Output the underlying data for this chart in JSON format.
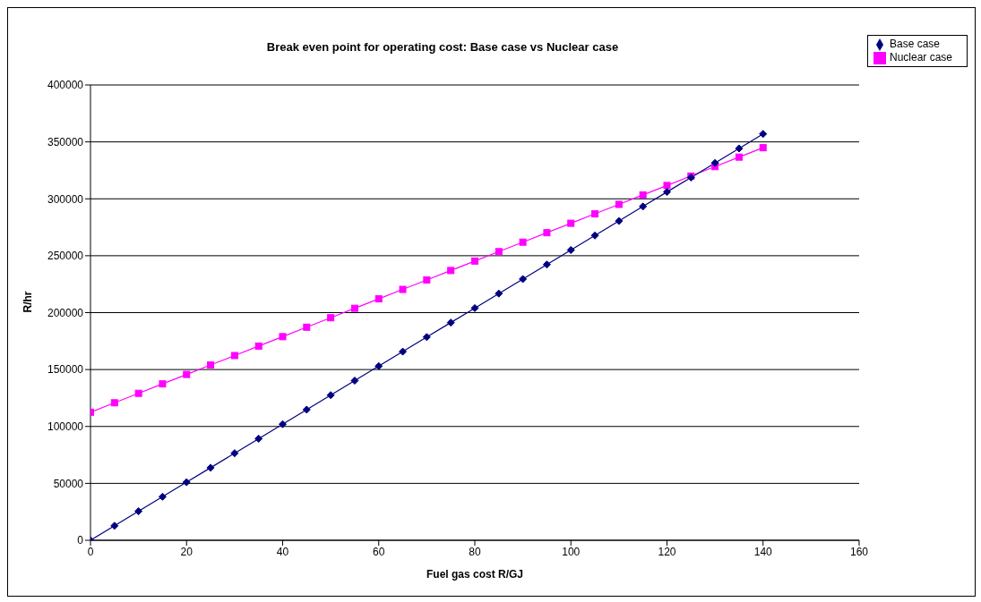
{
  "chart_data": {
    "type": "line",
    "title": "Break even point for operating cost: Base case vs Nuclear case",
    "xlabel": "Fuel gas cost R/GJ",
    "ylabel": "R/hr",
    "x": [
      0,
      5,
      10,
      15,
      20,
      25,
      30,
      35,
      40,
      45,
      50,
      55,
      60,
      65,
      70,
      75,
      80,
      85,
      90,
      95,
      100,
      105,
      110,
      115,
      120,
      125,
      130,
      135,
      140
    ],
    "series": [
      {
        "name": "Base case",
        "color": "#000080",
        "marker": "diamond",
        "values": [
          0,
          12750,
          25500,
          38250,
          51000,
          63750,
          76500,
          89250,
          102000,
          114750,
          127500,
          140250,
          153000,
          165750,
          178500,
          191250,
          204000,
          216750,
          229500,
          242250,
          255000,
          267750,
          280500,
          293250,
          306000,
          318750,
          331500,
          344250,
          357000
        ]
      },
      {
        "name": "Nuclear case",
        "color": "#ff00ff",
        "marker": "square",
        "values": [
          112500,
          120800,
          129100,
          137400,
          145700,
          154000,
          162300,
          170600,
          178900,
          187200,
          195500,
          203800,
          212100,
          220400,
          228700,
          237000,
          245300,
          253600,
          261900,
          270200,
          278500,
          286800,
          295100,
          303400,
          311700,
          320000,
          328300,
          336600,
          344900
        ]
      }
    ],
    "xlim": [
      0,
      160
    ],
    "xticks": [
      0,
      20,
      40,
      60,
      80,
      100,
      120,
      140,
      160
    ],
    "ylim": [
      0,
      400000
    ],
    "yticks": [
      0,
      50000,
      100000,
      150000,
      200000,
      250000,
      300000,
      350000,
      400000
    ],
    "grid": "y",
    "legend": "top right",
    "line_style": "solid"
  }
}
